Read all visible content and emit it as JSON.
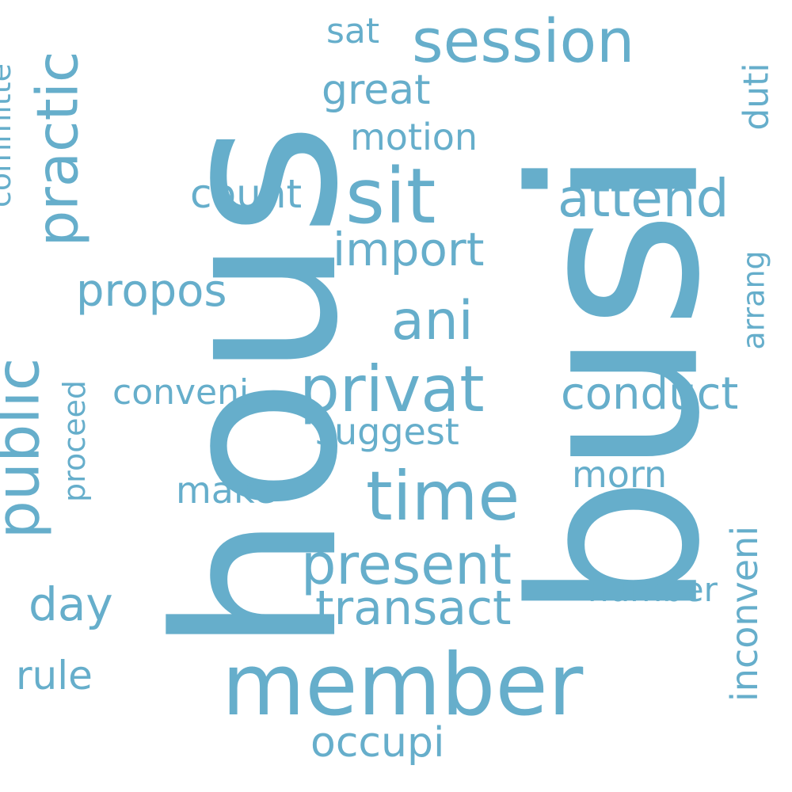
{
  "color": "#66aecb",
  "background": "#ffffff",
  "words": {
    "hous": "hous",
    "busi": "busi",
    "member": "member",
    "session": "session",
    "sit": "sit",
    "practic": "practic",
    "attend": "attend",
    "privat": "privat",
    "time": "time",
    "public": "public",
    "present": "present",
    "transact": "transact",
    "ani": "ani",
    "conduct": "conduct",
    "import": "import",
    "propos": "propos",
    "count": "count",
    "great": "great",
    "motion": "motion",
    "sat": "sat",
    "duti": "duti",
    "committe": "committe",
    "arrang": "arrang",
    "conveni": "conveni",
    "suggest": "suggest",
    "proceed": "proceed",
    "make": "make",
    "morn": "morn",
    "number": "number",
    "inconveni": "inconveni",
    "day": "day",
    "rule": "rule",
    "occupi": "occupi"
  }
}
